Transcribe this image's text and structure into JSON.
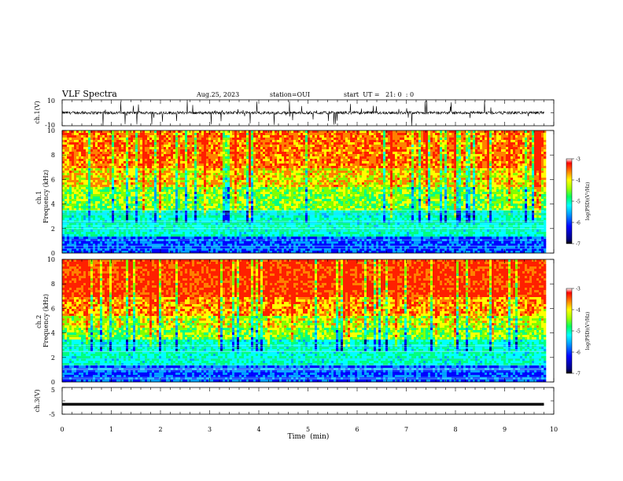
{
  "header": {
    "title": "VLF Spectra",
    "date": "Aug.25, 2023",
    "station": "station=OUI",
    "start": "start  UT =   21: 0  : 0"
  },
  "chart_data": [
    {
      "type": "line",
      "ylabel": "ch.1(V)",
      "ylim": [
        -10,
        10
      ],
      "y_ticklabels": [
        "10",
        "-10"
      ],
      "xlim": [
        0,
        9.8
      ],
      "signal": "noisy waveform centred near 0 V with frequent impulsive spikes reaching about ±10 V"
    },
    {
      "type": "heatmap",
      "ylabel": "ch.1\nFrequency  (kHz)",
      "ylim": [
        0,
        10
      ],
      "y_ticklabels": [
        "0",
        "2",
        "4",
        "6",
        "8",
        "10"
      ],
      "xlim": [
        0,
        9.8
      ],
      "colorbar": {
        "label": "log(PSD)(V²/Hz)",
        "range": [
          -7,
          -3
        ],
        "ticklabels": [
          "-3",
          "-4",
          "-5",
          "-6",
          "-7"
        ]
      },
      "description": "low PSD (blue, about -6.5) below ~1.5 kHz, cyan/green 2–3.5 kHz, yellow-green 4–6 kHz, high PSD (red, about -3.5) 6–10 kHz; vertical impulsive streaks throughout"
    },
    {
      "type": "heatmap",
      "ylabel": "ch.2\nFrequency  (kHz)",
      "ylim": [
        0,
        10
      ],
      "y_ticklabels": [
        "0",
        "2",
        "4",
        "6",
        "8",
        "10"
      ],
      "xlim": [
        0,
        9.8
      ],
      "colorbar": {
        "label": "log(PSD)(V²/Hz)",
        "range": [
          -7,
          -3
        ],
        "ticklabels": [
          "-3",
          "-4",
          "-5",
          "-6",
          "-7"
        ]
      },
      "description": "similar to ch.1, slightly more red at 5–10 kHz; blue/cyan band below 3.5 kHz"
    },
    {
      "type": "line",
      "ylabel": "ch.3(V)",
      "ylim": [
        -5,
        5
      ],
      "y_ticklabels": [
        "5",
        "-5"
      ],
      "xlim": [
        0,
        9.8
      ],
      "constant_value": -1.3
    }
  ],
  "xaxis": {
    "label": "Time  (min)",
    "range": [
      0,
      10
    ],
    "ticklabels": [
      "0",
      "1",
      "2",
      "3",
      "4",
      "5",
      "6",
      "7",
      "8",
      "9",
      "10"
    ]
  },
  "colors": {
    "colormap": [
      "#000080",
      "#0000ff",
      "#00a0ff",
      "#00ffff",
      "#00ff80",
      "#80ff00",
      "#ffff00",
      "#ff8000",
      "#ff2000"
    ]
  }
}
